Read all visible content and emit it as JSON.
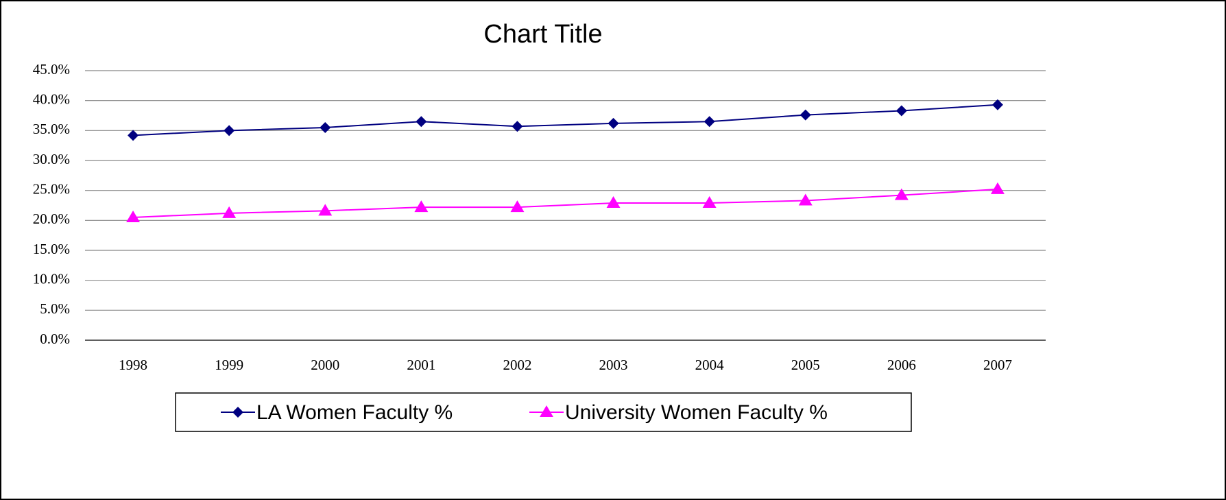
{
  "chart_data": {
    "type": "line",
    "title": "Chart Title",
    "categories": [
      "1998",
      "1999",
      "2000",
      "2001",
      "2002",
      "2003",
      "2004",
      "2005",
      "2006",
      "2007"
    ],
    "series": [
      {
        "name": "LA Women Faculty %",
        "color": "#000080",
        "marker": "diamond",
        "values": [
          34.2,
          35.0,
          35.5,
          36.5,
          35.7,
          36.2,
          36.5,
          37.6,
          38.3,
          39.3
        ]
      },
      {
        "name": "University Women Faculty %",
        "color": "#ff00ff",
        "marker": "triangle",
        "values": [
          20.5,
          21.2,
          21.6,
          22.2,
          22.2,
          22.9,
          22.9,
          23.3,
          24.2,
          25.2
        ]
      }
    ],
    "ylim": [
      0,
      45
    ],
    "yticks": [
      {
        "value": 0,
        "label": "0.0%"
      },
      {
        "value": 5,
        "label": "5.0%"
      },
      {
        "value": 10,
        "label": "10.0%"
      },
      {
        "value": 15,
        "label": "15.0%"
      },
      {
        "value": 20,
        "label": "20.0%"
      },
      {
        "value": 25,
        "label": "25.0%"
      },
      {
        "value": 30,
        "label": "30.0%"
      },
      {
        "value": 35,
        "label": "35.0%"
      },
      {
        "value": 40,
        "label": "40.0%"
      },
      {
        "value": 45,
        "label": "45.0%"
      }
    ],
    "grid": true,
    "legend": "bottom"
  }
}
